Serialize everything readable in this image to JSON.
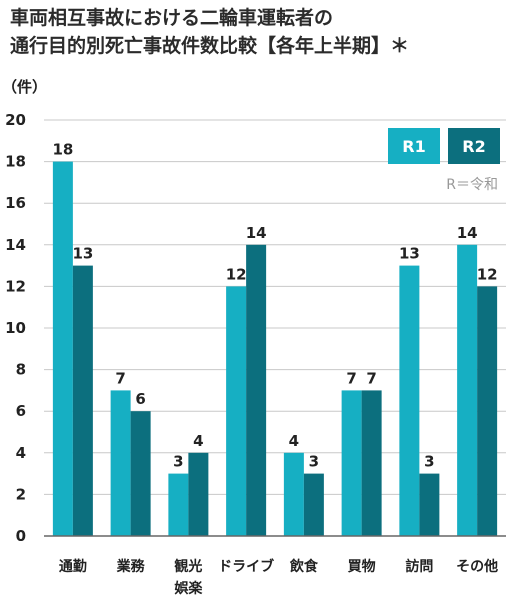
{
  "title_line1": "車両相互事故における二輪車運転者の",
  "title_line2": "通行目的別死亡事故件数比較【各年上半期】＊",
  "unit": "（件）",
  "colors": {
    "r1": "#16afc3",
    "r2": "#0c6f7e",
    "grid": "#c8c8c8",
    "axis": "#666666"
  },
  "legend_note": "R＝令和",
  "chart_data": {
    "type": "bar",
    "categories": [
      [
        "通勤"
      ],
      [
        "業務"
      ],
      [
        "観光",
        "娯楽"
      ],
      [
        "ドライブ"
      ],
      [
        "飲食"
      ],
      [
        "買物"
      ],
      [
        "訪問"
      ],
      [
        "その他"
      ]
    ],
    "series": [
      {
        "name": "R1",
        "values": [
          18,
          7,
          3,
          12,
          4,
          7,
          13,
          14
        ]
      },
      {
        "name": "R2",
        "values": [
          13,
          6,
          4,
          14,
          3,
          7,
          3,
          12
        ]
      }
    ],
    "ylim": [
      0,
      20
    ],
    "yticks": [
      0,
      2,
      4,
      6,
      8,
      10,
      12,
      14,
      16,
      18,
      20
    ],
    "grid": true,
    "legend_position": "top-right"
  }
}
